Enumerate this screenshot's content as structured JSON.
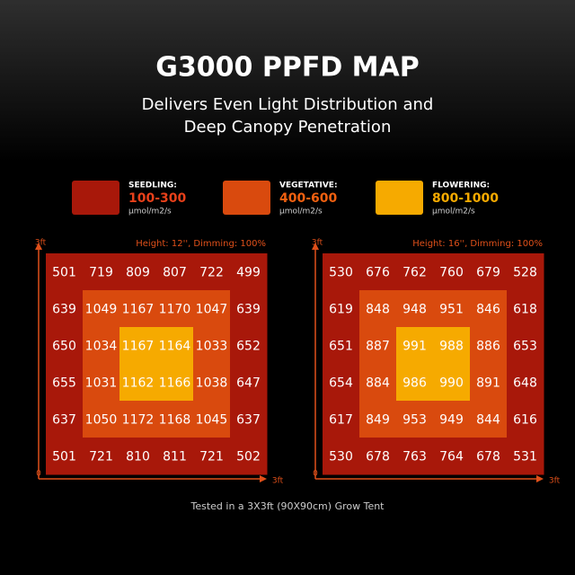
{
  "header": {
    "title": "G3000 PPFD MAP",
    "subtitle_lines": [
      "Delivers Even Light Distribution and",
      "Deep Canopy Penetration"
    ]
  },
  "legend": [
    {
      "label": "SEEDLING:",
      "range": "100-300",
      "unit": "μmol/m2/s"
    },
    {
      "label": "VEGETATIVE:",
      "range": "400-600",
      "unit": "μmol/m2/s"
    },
    {
      "label": "FLOWERING:",
      "range": "800-1000",
      "unit": "μmol/m2/s"
    }
  ],
  "maps": [
    {
      "caption": "Height: 12'', Dimming: 100%",
      "y_max_label": "3ft",
      "origin_label": "0",
      "x_max_label": "3ft",
      "rows": [
        [
          501,
          719,
          809,
          807,
          722,
          499
        ],
        [
          639,
          1049,
          1167,
          1170,
          1047,
          639
        ],
        [
          650,
          1034,
          1167,
          1164,
          1033,
          652
        ],
        [
          655,
          1031,
          1162,
          1166,
          1038,
          647
        ],
        [
          637,
          1050,
          1172,
          1168,
          1045,
          637
        ],
        [
          501,
          721,
          810,
          811,
          721,
          502
        ]
      ]
    },
    {
      "caption": "Height: 16'', Dimming: 100%",
      "y_max_label": "3ft",
      "origin_label": "0",
      "x_max_label": "3ft",
      "rows": [
        [
          530,
          676,
          762,
          760,
          679,
          528
        ],
        [
          619,
          848,
          948,
          951,
          846,
          618
        ],
        [
          651,
          887,
          991,
          988,
          886,
          653
        ],
        [
          654,
          884,
          986,
          990,
          891,
          648
        ],
        [
          617,
          849,
          953,
          949,
          844,
          616
        ],
        [
          530,
          678,
          763,
          764,
          678,
          531
        ]
      ]
    }
  ],
  "footnote": "Tested in a 3X3ft (90X90cm) Grow Tent"
}
